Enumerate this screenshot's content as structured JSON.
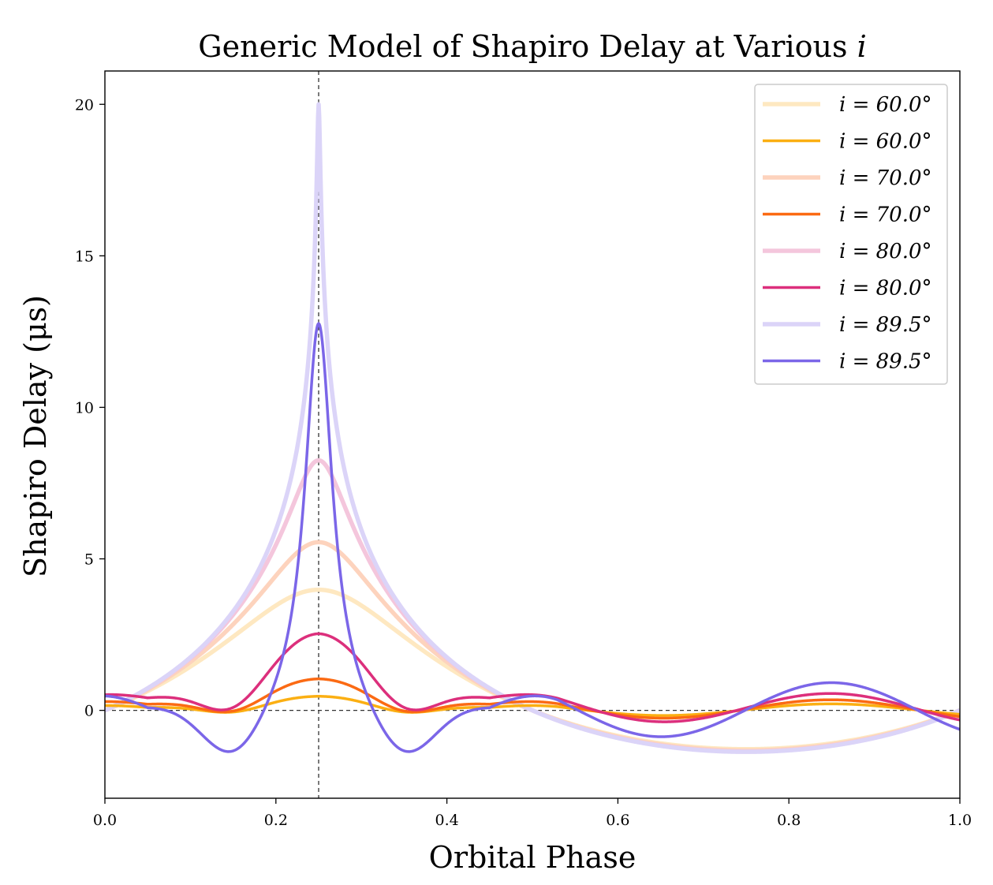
{
  "chart_data": {
    "type": "line",
    "title": "Generic Model of Shapiro Delay at Various i",
    "title_text": "Generic Model of Shapiro Delay at Various",
    "title_italic_symbol": "i",
    "xlabel": "Orbital Phase",
    "ylabel": "Shapiro Delay (μs)",
    "xlim": [
      0.0,
      1.0
    ],
    "ylim": [
      -2.9,
      21.1
    ],
    "xticks": [
      "0.0",
      "0.2",
      "0.4",
      "0.6",
      "0.8",
      "1.0"
    ],
    "yticks": [
      "0",
      "5",
      "10",
      "15",
      "20"
    ],
    "reference_lines": {
      "vertical_x": 0.25,
      "horizontal_y": 0
    },
    "legend_position": "top-right",
    "series": [
      {
        "name": "i = 60.0°",
        "label": "i = 60.0°",
        "inclination": 60.0,
        "style": "full",
        "color": "#fee8c1",
        "peak": 3.98,
        "trough": -1.28
      },
      {
        "name": "i = 60.0°",
        "label": "i = 60.0°",
        "inclination": 60.0,
        "style": "residual",
        "color": "#fbaf12",
        "peak": 0.47,
        "trough": -0.3,
        "osc_amp": 0.2
      },
      {
        "name": "i = 70.0°",
        "label": "i = 70.0°",
        "inclination": 70.0,
        "style": "full",
        "color": "#fdd3bd",
        "peak": 5.55,
        "trough": -1.32
      },
      {
        "name": "i = 70.0°",
        "label": "i = 70.0°",
        "inclination": 70.0,
        "style": "residual",
        "color": "#fb6a13",
        "peak": 1.05,
        "trough": -0.55,
        "osc_amp": 0.32
      },
      {
        "name": "i = 80.0°",
        "label": "i = 80.0°",
        "inclination": 80.0,
        "style": "full",
        "color": "#f4c6dc",
        "peak": 8.25,
        "trough": -1.36
      },
      {
        "name": "i = 80.0°",
        "label": "i = 80.0°",
        "inclination": 80.0,
        "style": "residual",
        "color": "#dc2f7c",
        "peak": 2.55,
        "trough": -1.05,
        "osc_amp": 0.5
      },
      {
        "name": "i = 89.5°",
        "label": "i = 89.5°",
        "inclination": 89.5,
        "style": "full",
        "color": "#dbd4f8",
        "peak": 20.0,
        "trough": -1.38
      },
      {
        "name": "i = 89.5°",
        "label": "i = 89.5°",
        "inclination": 89.5,
        "style": "residual",
        "color": "#7b66e8",
        "peak": 12.8,
        "trough": -1.8,
        "osc_amp": 0.9
      }
    ]
  }
}
